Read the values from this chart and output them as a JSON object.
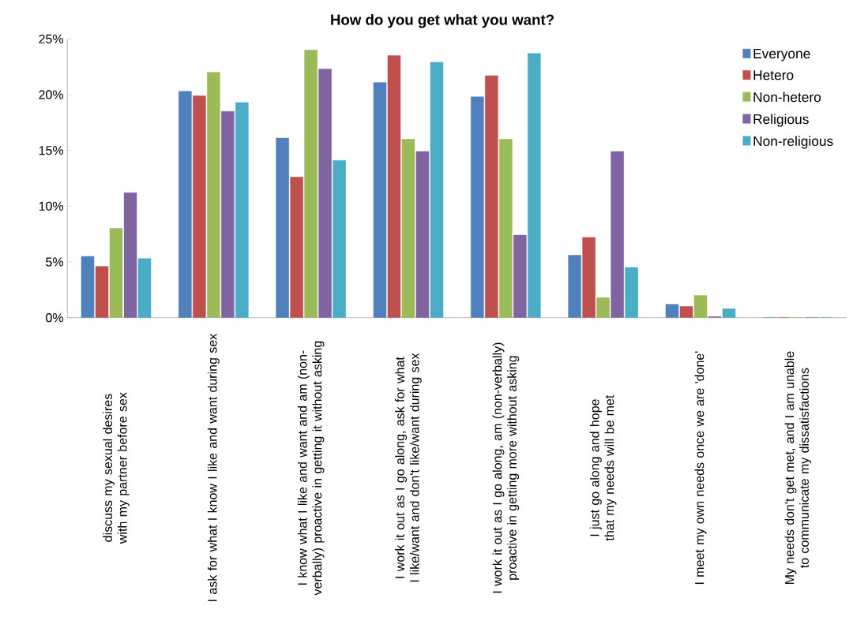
{
  "chart_data": {
    "type": "bar",
    "title": "How do you get what you want?",
    "categories": [
      "discuss my sexual desires with my partner before sex",
      "I ask for what I know I like and want during sex",
      "I know what I like and want and am (non-verbally) proactive in getting it without asking",
      "I work it out as I go along,  ask for what I like/want and don't like/want during sex",
      "I work it out as I go along,   am (non-verbally) proactive in getting more without asking",
      "I just go along and hope that my needs will be met",
      "I meet my own needs once we are 'done'",
      "My needs don't get met, and I am unable to communicate my dissatisfactions"
    ],
    "series": [
      {
        "name": "Everyone",
        "color": "#4f81bd",
        "values": [
          5.5,
          20.3,
          16.1,
          21.1,
          19.8,
          5.6,
          1.2,
          0
        ]
      },
      {
        "name": "Hetero",
        "color": "#c0504d",
        "values": [
          4.6,
          19.9,
          12.6,
          23.5,
          21.7,
          7.2,
          1.0,
          0
        ]
      },
      {
        "name": "Non-hetero",
        "color": "#9bbb59",
        "values": [
          8.0,
          22.0,
          24.0,
          16.0,
          16.0,
          1.8,
          2.0,
          0
        ]
      },
      {
        "name": "Religious",
        "color": "#8064a2",
        "values": [
          11.2,
          18.5,
          22.3,
          14.9,
          7.4,
          14.9,
          0.1,
          0
        ]
      },
      {
        "name": "Non-religious",
        "color": "#4bacc6",
        "values": [
          5.3,
          19.3,
          14.1,
          22.9,
          23.7,
          4.5,
          0.8,
          0
        ]
      }
    ],
    "ylim": [
      0,
      25
    ],
    "yticks": [
      {
        "value": 0,
        "label": "0%"
      },
      {
        "value": 5,
        "label": "5%"
      },
      {
        "value": 10,
        "label": "10%"
      },
      {
        "value": 15,
        "label": "15%"
      },
      {
        "value": 20,
        "label": "20%"
      },
      {
        "value": 25,
        "label": "25%"
      }
    ],
    "grid": false,
    "legend": "top right"
  }
}
